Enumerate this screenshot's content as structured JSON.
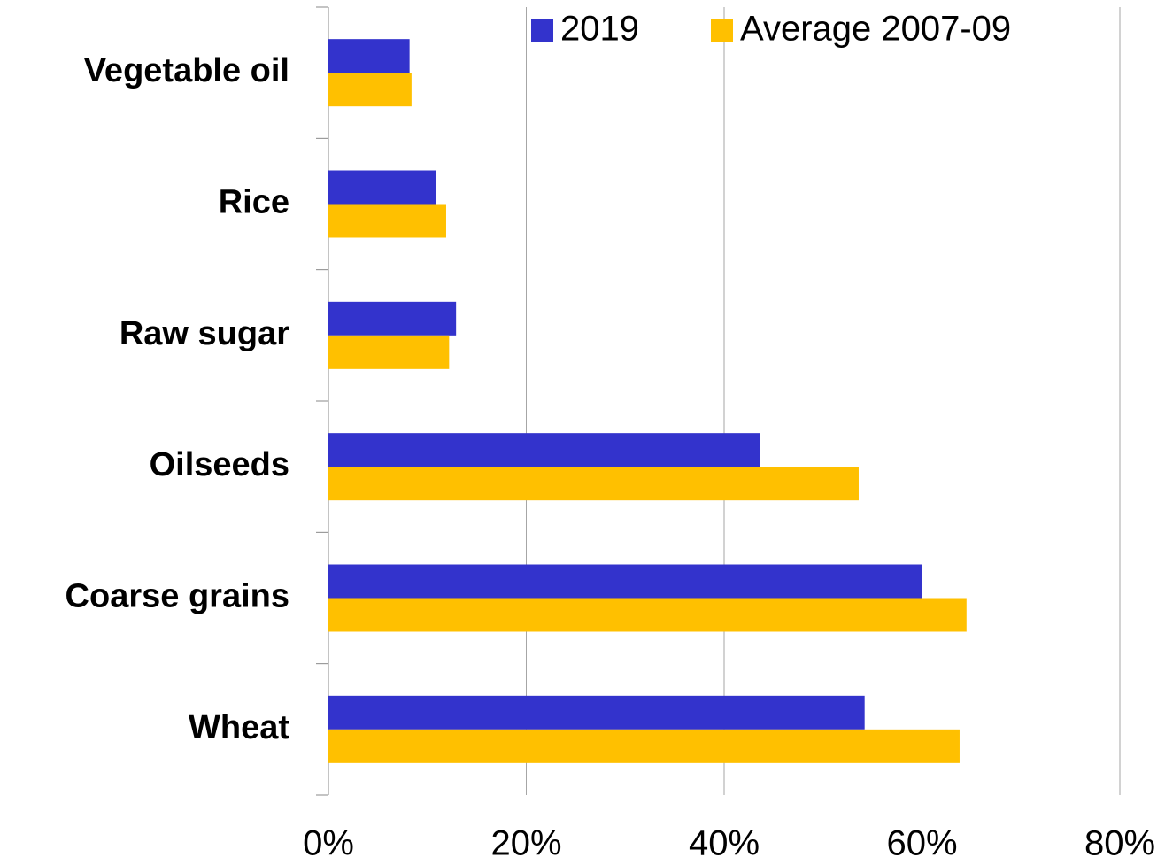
{
  "chart_data": {
    "type": "hbar",
    "categories": [
      "Vegetable oil",
      "Rice",
      "Raw sugar",
      "Oilseeds",
      "Coarse grains",
      "Wheat"
    ],
    "series": [
      {
        "name": "2019",
        "color": "#3333cc",
        "values": [
          8.2,
          10.9,
          12.9,
          43.6,
          60,
          54.2
        ]
      },
      {
        "name": "Average 2007-09",
        "color": "#ffc000",
        "values": [
          8.4,
          11.9,
          12.2,
          53.6,
          64.5,
          63.8
        ]
      }
    ],
    "xlim": [
      0,
      80
    ],
    "xticks": [
      {
        "value": 0,
        "label": "0%"
      },
      {
        "value": 20,
        "label": "20%"
      },
      {
        "value": 40,
        "label": "40%"
      },
      {
        "value": 60,
        "label": "60%"
      },
      {
        "value": 80,
        "label": "80%"
      }
    ],
    "grid": true,
    "legend": "top"
  }
}
